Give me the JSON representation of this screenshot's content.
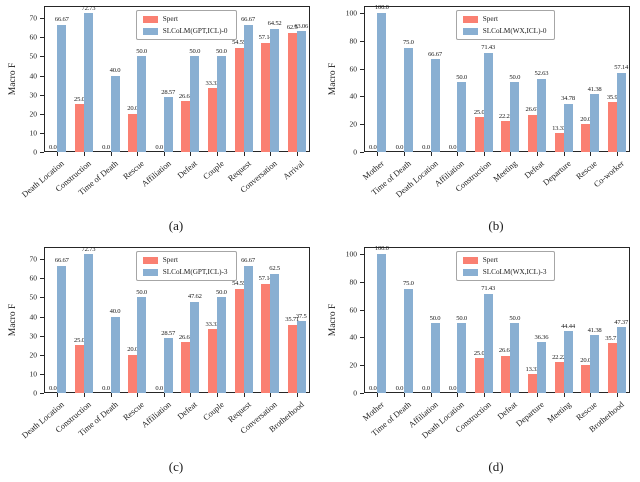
{
  "figure": {
    "background": "#ffffff"
  },
  "colors": {
    "spert": "#FA8072",
    "slcolm": "#89AFD2",
    "axis": "#262626"
  },
  "chart_data": [
    {
      "type": "bar",
      "caption": "(a)",
      "ylabel": "Macro F",
      "yticks": [
        0,
        10,
        20,
        30,
        40,
        50,
        60,
        70
      ],
      "ymax": 76.4,
      "legend_position": "upper center",
      "grid": false,
      "categories": [
        "Death Location",
        "Construction",
        "Time of Death",
        "Rescue",
        "Affiliation",
        "Defeat",
        "Couple",
        "Request",
        "Conversation",
        "Arrival"
      ],
      "series": [
        {
          "name": "Spert",
          "values": [
            "0.0",
            "25.0",
            "0.0",
            "20.0",
            "0.0",
            "26.67",
            "33.33",
            "54.55",
            "57.14",
            "62.5"
          ]
        },
        {
          "name": "SLCoLM(GPT,ICL)-0",
          "values": [
            "66.67",
            "72.73",
            "40.0",
            "50.0",
            "28.57",
            "50.0",
            "50.0",
            "66.67",
            "64.52",
            "63.06"
          ]
        }
      ]
    },
    {
      "type": "bar",
      "caption": "(b)",
      "ylabel": "Macro F",
      "yticks": [
        0,
        20,
        40,
        60,
        80,
        100
      ],
      "ymax": 105,
      "legend_position": "upper center",
      "grid": false,
      "categories": [
        "Mother",
        "Time of Death",
        "Death Location",
        "Affiliation",
        "Construction",
        "Meeting",
        "Defeat",
        "Departure",
        "Rescue",
        "Co-worker"
      ],
      "series": [
        {
          "name": "Spert",
          "values": [
            "0.0",
            "0.0",
            "0.0",
            "0.0",
            "25.0",
            "22.22",
            "26.67",
            "13.33",
            "20.0",
            "35.9"
          ]
        },
        {
          "name": "SLCoLM(WX,ICL)-0",
          "values": [
            "100.0",
            "75.0",
            "66.67",
            "50.0",
            "71.43",
            "50.0",
            "52.63",
            "34.78",
            "41.38",
            "57.14"
          ]
        }
      ]
    },
    {
      "type": "bar",
      "caption": "(c)",
      "ylabel": "Macro F",
      "yticks": [
        0,
        10,
        20,
        30,
        40,
        50,
        60,
        70
      ],
      "ymax": 76.4,
      "legend_position": "upper center",
      "grid": false,
      "categories": [
        "Death Location",
        "Construction",
        "Time of Death",
        "Rescue",
        "Affiliation",
        "Defeat",
        "Couple",
        "Request",
        "Conversation",
        "Brotherhood"
      ],
      "series": [
        {
          "name": "Spert",
          "values": [
            "0.0",
            "25.0",
            "0.0",
            "20.0",
            "0.0",
            "26.67",
            "33.33",
            "54.55",
            "57.14",
            "35.71"
          ]
        },
        {
          "name": "SLCoLM(GPT,ICL)-3",
          "values": [
            "66.67",
            "72.73",
            "40.0",
            "50.0",
            "28.57",
            "47.62",
            "50.0",
            "66.67",
            "62.5",
            "37.5"
          ]
        }
      ]
    },
    {
      "type": "bar",
      "caption": "(d)",
      "ylabel": "Macro F",
      "yticks": [
        0,
        20,
        40,
        60,
        80,
        100
      ],
      "ymax": 105,
      "legend_position": "upper center",
      "grid": false,
      "categories": [
        "Mother",
        "Time of Death",
        "Affiliation",
        "Death Location",
        "Construction",
        "Defeat",
        "Departure",
        "Meeting",
        "Rescue",
        "Brotherhood"
      ],
      "series": [
        {
          "name": "Spert",
          "values": [
            "0.0",
            "0.0",
            "0.0",
            "0.0",
            "25.0",
            "26.67",
            "13.33",
            "22.22",
            "20.0",
            "35.71"
          ]
        },
        {
          "name": "SLCoLM(WX,ICL)-3",
          "values": [
            "100.0",
            "75.0",
            "50.0",
            "50.0",
            "71.43",
            "50.0",
            "36.36",
            "44.44",
            "41.38",
            "47.37"
          ]
        }
      ]
    }
  ]
}
